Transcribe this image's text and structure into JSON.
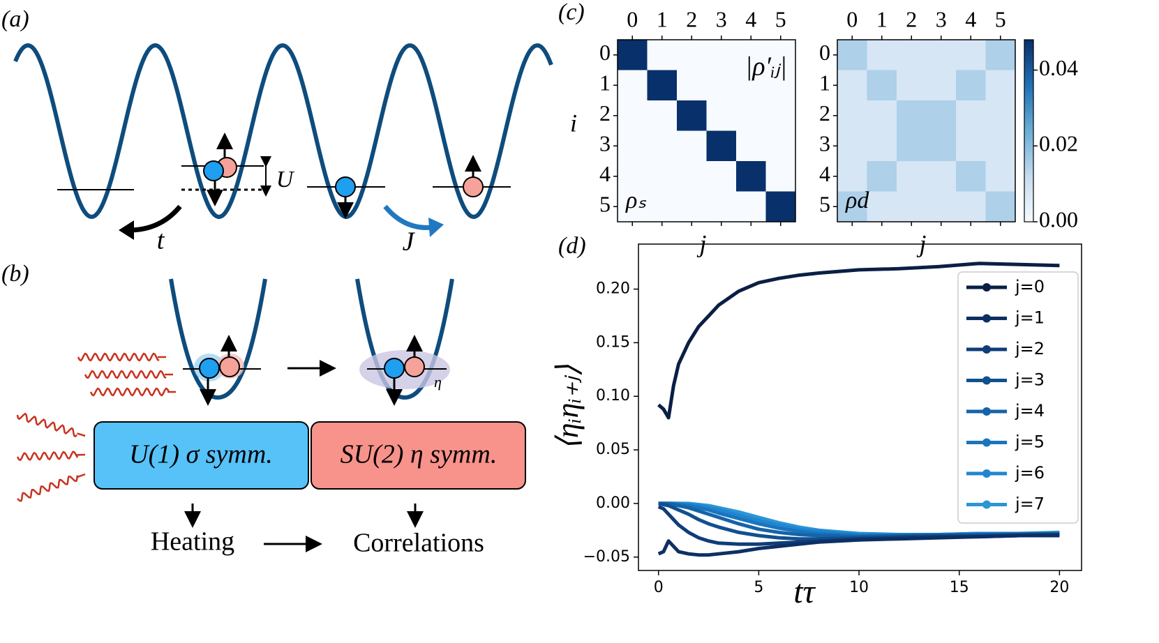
{
  "panels": {
    "a": {
      "label": "(a)",
      "hopping": "t",
      "interaction": "U",
      "exchange": "J"
    },
    "b": {
      "label": "(b)",
      "eta": "η",
      "box_left": "U(1)  σ symm.",
      "box_right": "SU(2)  η symm.",
      "heating": "Heating",
      "correlations": "Correlations"
    },
    "c": {
      "label": "(c)"
    },
    "d": {
      "label": "(d)"
    }
  },
  "chart_data": [
    {
      "type": "line",
      "xlabel": "tτ",
      "ylabel": "⟨ηᵢηᵢ₊ⱼ⟩",
      "x": [
        0,
        0.25,
        0.5,
        0.75,
        1,
        1.5,
        2,
        2.5,
        3,
        4,
        5,
        6,
        7,
        8,
        10,
        12,
        14,
        16,
        18,
        20
      ],
      "xlim": [
        -1,
        21.1
      ],
      "xticks": [
        0,
        5,
        10,
        15,
        20
      ],
      "ylim": [
        -0.0625,
        0.242
      ],
      "yticks": [
        {
          "value": -0.05,
          "label": "−0.05"
        },
        {
          "value": 0,
          "label": "0.00"
        },
        {
          "value": 0.05,
          "label": "0.05"
        },
        {
          "value": 0.1,
          "label": "0.10"
        },
        {
          "value": 0.15,
          "label": "0.15"
        },
        {
          "value": 0.2,
          "label": "0.20"
        }
      ],
      "legend": "upper right",
      "series": [
        {
          "name": "j=0",
          "color": "#0b1f45",
          "values": [
            0.092,
            0.088,
            0.08,
            0.11,
            0.13,
            0.15,
            0.165,
            0.175,
            0.185,
            0.198,
            0.206,
            0.21,
            0.213,
            0.215,
            0.218,
            0.219,
            0.221,
            0.224,
            0.223,
            0.222
          ]
        },
        {
          "name": "j=1",
          "color": "#0d2f63",
          "values": [
            -0.047,
            -0.045,
            -0.035,
            -0.04,
            -0.045,
            -0.047,
            -0.048,
            -0.048,
            -0.047,
            -0.045,
            -0.042,
            -0.04,
            -0.038,
            -0.036,
            -0.034,
            -0.033,
            -0.032,
            -0.031,
            -0.03,
            -0.03
          ]
        },
        {
          "name": "j=2",
          "color": "#0f3d7a",
          "values": [
            -0.003,
            -0.005,
            -0.01,
            -0.015,
            -0.02,
            -0.027,
            -0.032,
            -0.035,
            -0.037,
            -0.038,
            -0.038,
            -0.037,
            -0.036,
            -0.035,
            -0.033,
            -0.032,
            -0.031,
            -0.031,
            -0.03,
            -0.029
          ]
        },
        {
          "name": "j=3",
          "color": "#11508f",
          "values": [
            0,
            -0.001,
            -0.002,
            -0.004,
            -0.006,
            -0.01,
            -0.015,
            -0.019,
            -0.022,
            -0.027,
            -0.03,
            -0.032,
            -0.033,
            -0.033,
            -0.032,
            -0.031,
            -0.03,
            -0.03,
            -0.029,
            -0.029
          ]
        },
        {
          "name": "j=4",
          "color": "#1563a8",
          "values": [
            0,
            0,
            0,
            -0.001,
            -0.002,
            -0.004,
            -0.007,
            -0.01,
            -0.013,
            -0.019,
            -0.024,
            -0.027,
            -0.029,
            -0.03,
            -0.031,
            -0.03,
            -0.03,
            -0.029,
            -0.029,
            -0.028
          ]
        },
        {
          "name": "j=5",
          "color": "#1a75bf",
          "values": [
            0,
            0,
            0,
            0,
            -0.001,
            -0.002,
            -0.004,
            -0.006,
            -0.009,
            -0.014,
            -0.019,
            -0.023,
            -0.026,
            -0.028,
            -0.03,
            -0.03,
            -0.029,
            -0.029,
            -0.028,
            -0.028
          ]
        },
        {
          "name": "j=6",
          "color": "#2185cf",
          "values": [
            0,
            0,
            0,
            0,
            0,
            -0.001,
            -0.002,
            -0.004,
            -0.006,
            -0.011,
            -0.016,
            -0.02,
            -0.024,
            -0.026,
            -0.029,
            -0.029,
            -0.029,
            -0.028,
            -0.028,
            -0.028
          ]
        },
        {
          "name": "j=7",
          "color": "#2a96d6",
          "values": [
            0,
            0,
            0,
            0,
            0,
            0,
            -0.001,
            -0.002,
            -0.004,
            -0.008,
            -0.013,
            -0.018,
            -0.022,
            -0.025,
            -0.028,
            -0.029,
            -0.029,
            -0.028,
            -0.028,
            -0.027
          ]
        }
      ]
    },
    {
      "type": "heatmap",
      "annotation": "ρₛ",
      "title": "|ρ′ᵢⱼ|",
      "xlabel": "j",
      "ylabel": "i",
      "xticks": [
        0,
        1,
        2,
        3,
        4,
        5
      ],
      "yticks": [
        0,
        1,
        2,
        3,
        4,
        5
      ],
      "clim": [
        0,
        0.048
      ],
      "values": [
        [
          0.05,
          0,
          0,
          0,
          0,
          0
        ],
        [
          0,
          0.05,
          0,
          0,
          0,
          0
        ],
        [
          0,
          0,
          0.05,
          0,
          0,
          0
        ],
        [
          0,
          0,
          0,
          0.05,
          0,
          0
        ],
        [
          0,
          0,
          0,
          0,
          0.05,
          0
        ],
        [
          0,
          0,
          0,
          0,
          0,
          0.05
        ]
      ]
    },
    {
      "type": "heatmap",
      "annotation": "ρd",
      "xlabel": "j",
      "xticks": [
        0,
        1,
        2,
        3,
        4,
        5
      ],
      "yticks": [
        0,
        1,
        2,
        3,
        4,
        5
      ],
      "clim": [
        0,
        0.048
      ],
      "cticks": [
        {
          "value": 0,
          "label": "0.00"
        },
        {
          "value": 0.02,
          "label": "0.02"
        },
        {
          "value": 0.04,
          "label": "0.04"
        }
      ],
      "values": [
        [
          0.015,
          0.008,
          0.008,
          0.008,
          0.008,
          0.015
        ],
        [
          0.008,
          0.015,
          0.008,
          0.008,
          0.015,
          0.008
        ],
        [
          0.008,
          0.008,
          0.015,
          0.015,
          0.008,
          0.008
        ],
        [
          0.008,
          0.008,
          0.015,
          0.015,
          0.008,
          0.008
        ],
        [
          0.008,
          0.015,
          0.008,
          0.008,
          0.015,
          0.008
        ],
        [
          0.015,
          0.008,
          0.008,
          0.008,
          0.008,
          0.015
        ]
      ]
    }
  ]
}
